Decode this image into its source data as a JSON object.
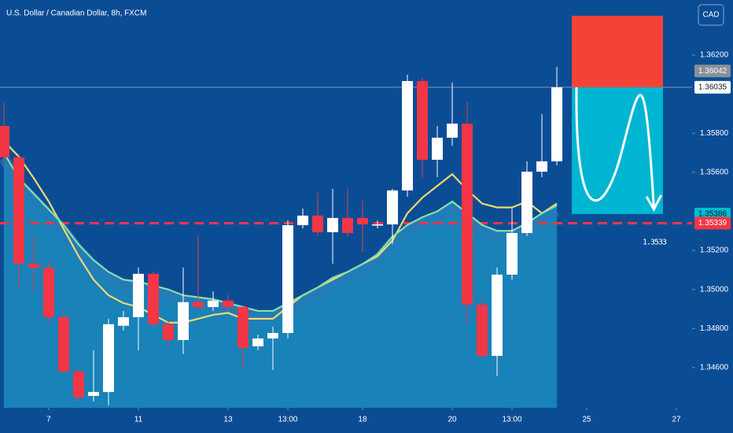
{
  "chart_data": {
    "type": "candlestick",
    "title": "U.S. Dollar / Canadian Dollar, 8h, FXCM",
    "currency": "CAD",
    "x": [
      0,
      1,
      2,
      3,
      4,
      5,
      6,
      7,
      8,
      9,
      10,
      11,
      12,
      13,
      14,
      15,
      16,
      17,
      18,
      19,
      20,
      21,
      22,
      23,
      24,
      25,
      26,
      27,
      28,
      29,
      30,
      31,
      32,
      33,
      34,
      35,
      36,
      37
    ],
    "open": [
      1.35837,
      1.35676,
      1.35132,
      1.35112,
      1.34858,
      1.3458,
      1.34455,
      1.34475,
      1.34814,
      1.34858,
      1.3508,
      1.34822,
      1.34741,
      1.34935,
      1.3491,
      1.34943,
      1.3491,
      1.34709,
      1.34749,
      1.34777,
      1.35329,
      1.35378,
      1.35293,
      1.35366,
      1.35366,
      1.35329,
      1.35333,
      1.35507,
      1.36067,
      1.35664,
      1.35777,
      1.35849,
      1.34922,
      1.3466,
      1.35076,
      1.35289,
      1.35603,
      1.35656
    ],
    "high": [
      1.35958,
      1.35696,
      1.35273,
      1.35152,
      1.3489,
      1.34588,
      1.34689,
      1.3485,
      1.3489,
      1.35112,
      1.35092,
      1.34838,
      1.35112,
      1.35273,
      1.34991,
      1.34971,
      1.34918,
      1.34769,
      1.3481,
      1.35354,
      1.35414,
      1.35495,
      1.35515,
      1.35515,
      1.35454,
      1.35354,
      1.35515,
      1.36099,
      1.36087,
      1.35837,
      1.36059,
      1.35958,
      1.34951,
      1.35112,
      1.35414,
      1.35656,
      1.35898,
      1.36139
    ],
    "low": [
      1.35656,
      1.35011,
      1.34991,
      1.3483,
      1.34568,
      1.34427,
      1.34427,
      1.34407,
      1.34789,
      1.34689,
      1.3481,
      1.34709,
      1.34669,
      1.3489,
      1.3489,
      1.3489,
      1.34596,
      1.34689,
      1.34588,
      1.34749,
      1.35313,
      1.35273,
      1.35132,
      1.35273,
      1.35192,
      1.35313,
      1.35233,
      1.35475,
      1.35575,
      1.35575,
      1.35736,
      1.34822,
      1.34648,
      1.34556,
      1.35051,
      1.35273,
      1.35575,
      1.35636
    ],
    "close": [
      1.35676,
      1.35132,
      1.35112,
      1.34858,
      1.3458,
      1.34447,
      1.34475,
      1.34822,
      1.34858,
      1.3508,
      1.34822,
      1.34741,
      1.34935,
      1.3491,
      1.34943,
      1.3491,
      1.34701,
      1.34749,
      1.34777,
      1.35329,
      1.35378,
      1.35293,
      1.35366,
      1.35289,
      1.35333,
      1.35333,
      1.35507,
      1.36067,
      1.35664,
      1.35777,
      1.35849,
      1.34922,
      1.3466,
      1.35076,
      1.35289,
      1.35603,
      1.35656,
      1.36035
    ],
    "up_color": "#ffffff",
    "down_color": "#f23645",
    "lines": [
      {
        "color": "#f5d76e",
        "values": [
          1.3576,
          1.3568,
          1.3557,
          1.3545,
          1.3531,
          1.3517,
          1.3505,
          1.3497,
          1.3493,
          1.3491,
          1.3487,
          1.3483,
          1.3483,
          1.3485,
          1.3487,
          1.3488,
          1.3485,
          1.3485,
          1.3485,
          1.3491,
          1.3497,
          1.3501,
          1.3505,
          1.3509,
          1.3513,
          1.3517,
          1.3525,
          1.3539,
          1.3547,
          1.3553,
          1.3559,
          1.3551,
          1.3544,
          1.3542,
          1.3542,
          1.3545,
          1.3539,
          1.3544
        ]
      },
      {
        "color": "#86e0a8",
        "area_color": "#1b8cc0",
        "values": [
          1.357,
          1.3557,
          1.3549,
          1.3541,
          1.3533,
          1.3523,
          1.3515,
          1.3509,
          1.3505,
          1.3504,
          1.3502,
          1.35,
          1.3497,
          1.3496,
          1.3495,
          1.3493,
          1.3491,
          1.3489,
          1.3489,
          1.3493,
          1.3497,
          1.3501,
          1.3506,
          1.3509,
          1.3513,
          1.3518,
          1.3527,
          1.3533,
          1.3537,
          1.354,
          1.3545,
          1.3539,
          1.3533,
          1.353,
          1.353,
          1.3534,
          1.3539,
          1.3543
        ]
      }
    ],
    "xlim": [
      -0.26,
      46.05
    ],
    "xticks": [
      {
        "value": 3,
        "label": "7"
      },
      {
        "value": 9,
        "label": "11"
      },
      {
        "value": 15,
        "label": "13"
      },
      {
        "value": 19,
        "label": "13:00"
      },
      {
        "value": 24,
        "label": "18"
      },
      {
        "value": 30,
        "label": "20"
      },
      {
        "value": 34,
        "label": "13:00"
      },
      {
        "value": 39,
        "label": "25"
      },
      {
        "value": 45,
        "label": "27"
      }
    ],
    "ylim": [
      1.34394,
      1.36482
    ],
    "yticks": [
      {
        "value": 1.362,
        "label": "1.36200"
      },
      {
        "value": 1.358,
        "label": "1.35800"
      },
      {
        "value": 1.356,
        "label": "1.35600"
      },
      {
        "value": 1.352,
        "label": "1.35200"
      },
      {
        "value": 1.35,
        "label": "1.35000"
      },
      {
        "value": 1.348,
        "label": "1.34800"
      },
      {
        "value": 1.346,
        "label": "1.34600"
      }
    ],
    "price_labels": [
      {
        "value": 1.36042,
        "color": "#8a8f99",
        "text_color": "#ffffff"
      },
      {
        "value": 1.36035,
        "color": "#ffffff",
        "text_color": "#131722"
      },
      {
        "value": 1.35386,
        "color": "#00bcd4",
        "text_color": "#131722"
      },
      {
        "value": 1.35339,
        "color": "#f23645",
        "text_color": "#ffffff"
      }
    ],
    "position": {
      "start": 38,
      "end": 44.1,
      "entry": 1.36035,
      "stop": 1.36401,
      "target": 1.35386,
      "stop_color": "#f44336",
      "target_color": "#00b5d1"
    },
    "annotation": "1.3533"
  }
}
